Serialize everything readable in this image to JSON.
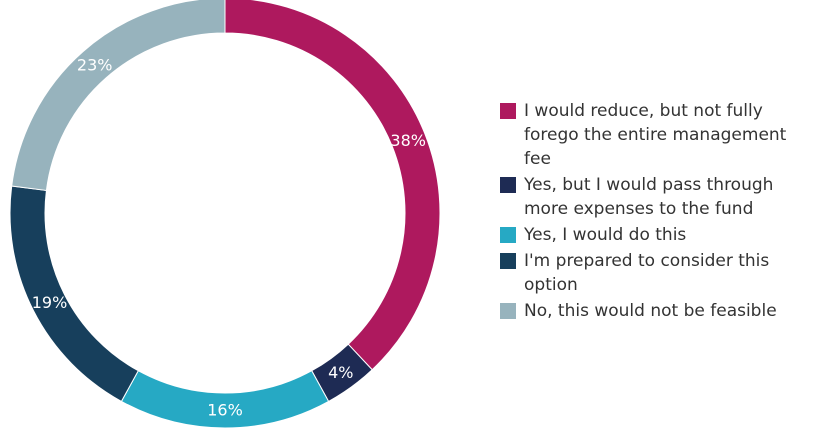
{
  "chart_data": {
    "type": "pie",
    "donut": true,
    "start_angle_deg": 0,
    "direction": "clockwise",
    "legend_position": "right",
    "slices": [
      {
        "name": "I would reduce, but not fully forego the entire management fee",
        "value": 38,
        "label": "38%",
        "color": "#AE195E"
      },
      {
        "name": "Yes, but I would pass through more expenses to the fund",
        "value": 4,
        "label": "4%",
        "color": "#1E2B54"
      },
      {
        "name": "Yes, I would do this",
        "value": 16,
        "label": "16%",
        "color": "#26A9C4"
      },
      {
        "name": "I'm prepared to consider this option",
        "value": 19,
        "label": "19%",
        "color": "#173F5C"
      },
      {
        "name": "No, this would not be feasible",
        "value": 23,
        "label": "23%",
        "color": "#97B3BD"
      }
    ]
  }
}
